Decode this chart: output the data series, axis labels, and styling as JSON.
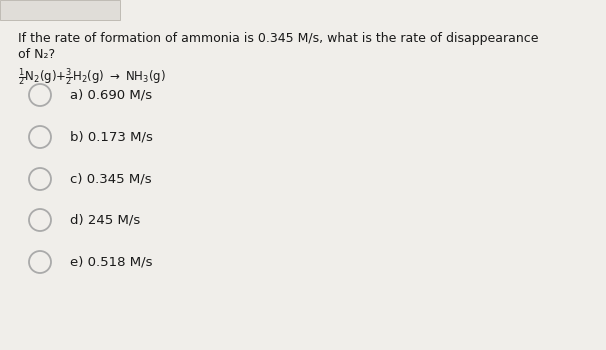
{
  "title_line1": "If the rate of formation of ammonia is 0.345 M/s, what is the rate of disappearance",
  "title_line2": "of N₂?",
  "options": [
    {
      "label": "a)",
      "text": "0.690 M/s"
    },
    {
      "label": "b)",
      "text": "0.173 M/s"
    },
    {
      "label": "c)",
      "text": "0.345 M/s"
    },
    {
      "label": "d)",
      "text": "245 M/s"
    },
    {
      "label": "e)",
      "text": "0.518 M/s"
    }
  ],
  "selected_option": null,
  "bg_color": "#f0eeea",
  "text_color": "#1a1a1a",
  "circle_edge_color": "#aaaaaa",
  "title_fontsize": 9.0,
  "option_fontsize": 9.5,
  "equation_fontsize": 8.5,
  "top_bar_color": "#d0ccc4",
  "top_bar_height": 0.06
}
